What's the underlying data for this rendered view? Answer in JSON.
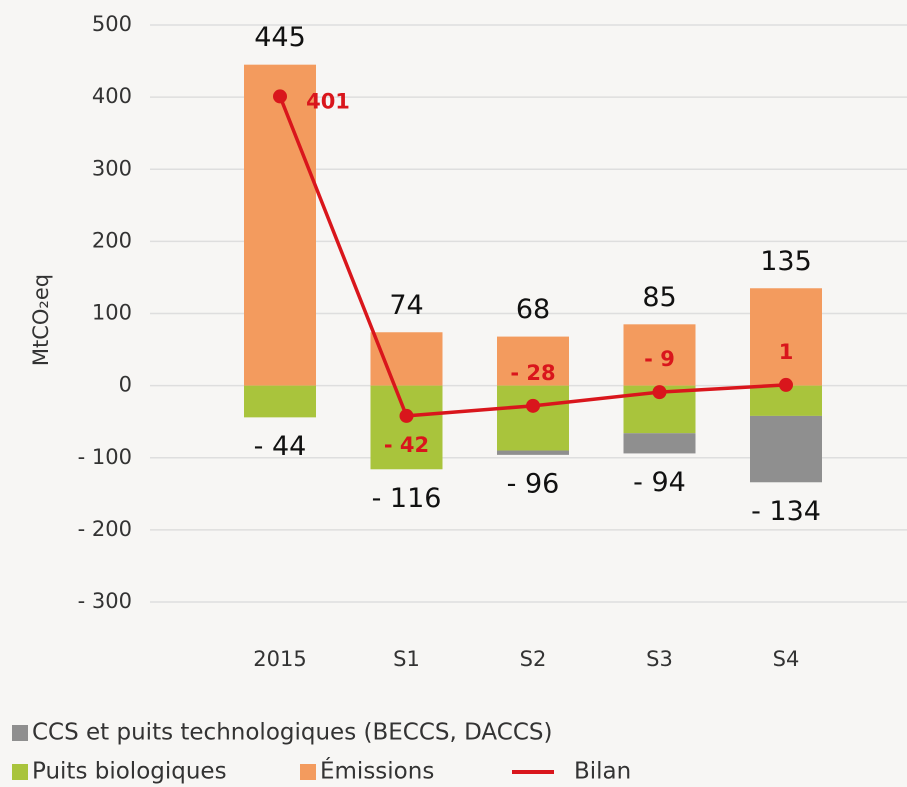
{
  "chart_data": {
    "type": "stacked_bar_line",
    "y_label": "MtCO₂eq",
    "categories": [
      "2015",
      "S1",
      "S2",
      "S3",
      "S4"
    ],
    "ylim": [
      -300,
      500
    ],
    "yticks": [
      {
        "value": -300,
        "label": "- 300"
      },
      {
        "value": -200,
        "label": "- 200"
      },
      {
        "value": -100,
        "label": "- 100"
      },
      0,
      100,
      200,
      300,
      400,
      500
    ],
    "grid": true,
    "series": [
      {
        "name": "Émissions",
        "color": "#f39b5e",
        "kind": "bar",
        "values": [
          445,
          74,
          68,
          85,
          135
        ]
      },
      {
        "name": "Puits biologiques",
        "color": "#a9c43c",
        "kind": "bar",
        "values": [
          -44,
          -116,
          -90,
          -66,
          -42
        ]
      },
      {
        "name": "CCS et puits technologiques (BECCS, DACCS)",
        "color": "#8f8f8f",
        "kind": "bar",
        "values": [
          0,
          0,
          -6,
          -28,
          -92
        ]
      },
      {
        "name": "Bilan",
        "color": "#d9161c",
        "kind": "line",
        "values": [
          401,
          -42,
          -28,
          -9,
          1
        ],
        "value_labels": [
          "401",
          "- 42",
          "- 28",
          "- 9",
          "1"
        ]
      }
    ],
    "negative_totals": {
      "values": [
        -44,
        -116,
        -96,
        -94,
        -134
      ],
      "value_labels": [
        "- 44",
        "- 116",
        "- 96",
        "- 94",
        "- 134"
      ]
    }
  }
}
